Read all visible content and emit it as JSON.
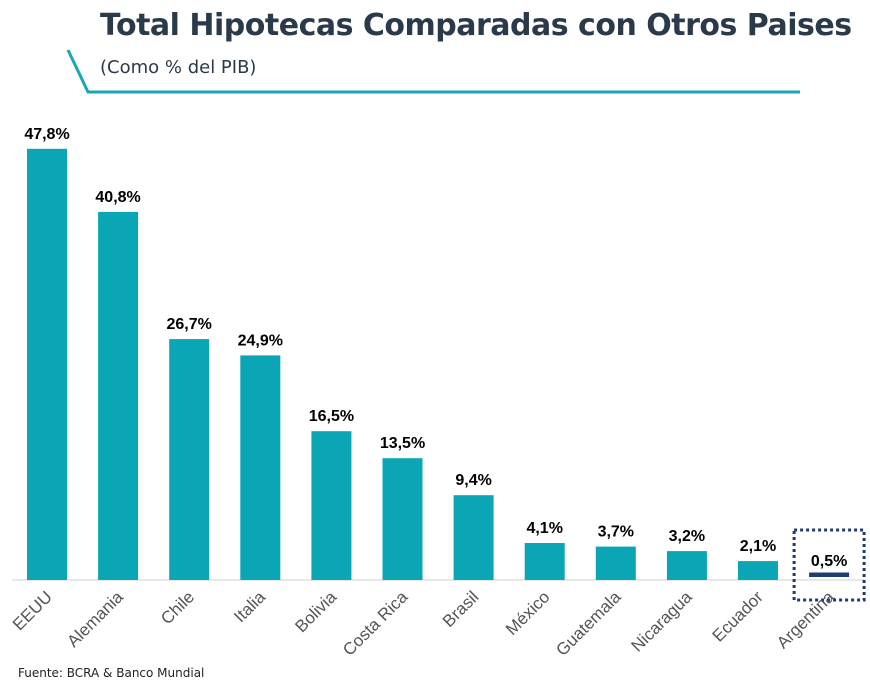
{
  "header": {
    "title": "Total Hipotecas Comparadas con Otros Paises",
    "subtitle": "(Como % del PIB)",
    "accent_color": "#1aa6b7"
  },
  "footer": {
    "source": "Fuente: BCRA & Banco Mundial"
  },
  "chart_data": {
    "type": "bar",
    "title": "Total Hipotecas Comparadas con Otros Paises",
    "subtitle": "(Como % del PIB)",
    "xlabel": "",
    "ylabel": "",
    "categories": [
      "EEUU",
      "Alemania",
      "Chile",
      "Italia",
      "Bolivia",
      "Costa Rica",
      "Brasil",
      "México",
      "Guatemala",
      "Nicaragua",
      "Ecuador",
      "Argentina"
    ],
    "values": [
      47.8,
      40.8,
      26.7,
      24.9,
      16.5,
      13.5,
      9.4,
      4.1,
      3.7,
      3.2,
      2.1,
      0.5
    ],
    "data_labels": [
      "47,8%",
      "40,8%",
      "26,7%",
      "24,9%",
      "16,5%",
      "13,5%",
      "9,4%",
      "4,1%",
      "3,7%",
      "3,2%",
      "2,1%",
      "0,5%"
    ],
    "ylim": [
      0,
      48
    ],
    "grid": false,
    "legend": "none",
    "bar_color": "#0aa6b5",
    "highlight_category": "Argentina",
    "highlight_color": "#1f3b73"
  }
}
